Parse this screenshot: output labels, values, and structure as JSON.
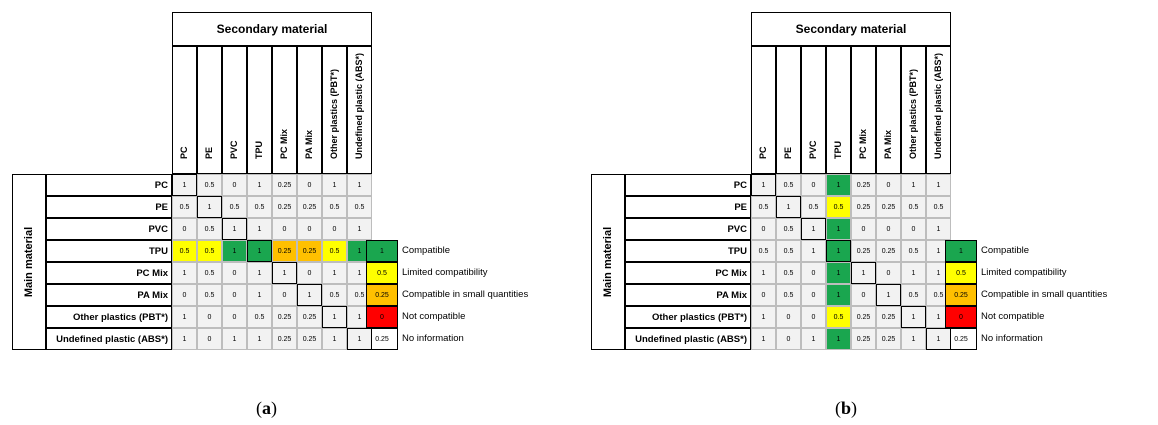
{
  "top_header": "Secondary material",
  "side_header": "Main material",
  "columns": [
    "PC",
    "PE",
    "PVC",
    "TPU",
    "PC Mix",
    "PA Mix",
    "Other plastics (PBT*)",
    "Undefined plastic (ABS*)"
  ],
  "rows": [
    "PC",
    "PE",
    "PVC",
    "TPU",
    "PC Mix",
    "PA Mix",
    "Other plastics (PBT*)",
    "Undefined plastic (ABS*)"
  ],
  "colors": {
    "green": "#1aa64f",
    "yellow": "#ffff00",
    "orange": "#ffc000",
    "red": "#ff0000",
    "white": "#ffffff",
    "header_bg": "#ffffff",
    "cell_bg": "#f2f2f2"
  },
  "legend": [
    {
      "value": "1",
      "label": "Compatible",
      "color": "green"
    },
    {
      "value": "0.5",
      "label": "Limited compatibility",
      "color": "yellow"
    },
    {
      "value": "0.25",
      "label": "Compatible in small quantities",
      "color": "orange"
    },
    {
      "value": "0",
      "label": "Not compatible",
      "color": "red"
    },
    {
      "value": "0.25",
      "label": "No information",
      "color": "white"
    }
  ],
  "panels": [
    {
      "caption_letter": "a",
      "matrix": [
        [
          "1",
          "0.5",
          "0",
          "1",
          "0.25",
          "0",
          "1",
          "1"
        ],
        [
          "0.5",
          "1",
          "0.5",
          "0.5",
          "0.25",
          "0.25",
          "0.5",
          "0.5"
        ],
        [
          "0",
          "0.5",
          "1",
          "1",
          "0",
          "0",
          "0",
          "1"
        ],
        [
          "0.5",
          "0.5",
          "1",
          "1",
          "0.25",
          "0.25",
          "0.5",
          "1"
        ],
        [
          "1",
          "0.5",
          "0",
          "1",
          "1",
          "0",
          "1",
          "1"
        ],
        [
          "0",
          "0.5",
          "0",
          "1",
          "0",
          "1",
          "0.5",
          "0.5"
        ],
        [
          "1",
          "0",
          "0",
          "0.5",
          "0.25",
          "0.25",
          "1",
          "1"
        ],
        [
          "1",
          "0",
          "1",
          "1",
          "0.25",
          "0.25",
          "1",
          "1"
        ]
      ],
      "highlight": {
        "type": "row",
        "index": 3
      }
    },
    {
      "caption_letter": "b",
      "matrix": [
        [
          "1",
          "0.5",
          "0",
          "1",
          "0.25",
          "0",
          "1",
          "1"
        ],
        [
          "0.5",
          "1",
          "0.5",
          "0.5",
          "0.25",
          "0.25",
          "0.5",
          "0.5"
        ],
        [
          "0",
          "0.5",
          "1",
          "1",
          "0",
          "0",
          "0",
          "1"
        ],
        [
          "0.5",
          "0.5",
          "1",
          "1",
          "0.25",
          "0.25",
          "0.5",
          "1"
        ],
        [
          "1",
          "0.5",
          "0",
          "1",
          "1",
          "0",
          "1",
          "1"
        ],
        [
          "0",
          "0.5",
          "0",
          "1",
          "0",
          "1",
          "0.5",
          "0.5"
        ],
        [
          "1",
          "0",
          "0",
          "0.5",
          "0.25",
          "0.25",
          "1",
          "1"
        ],
        [
          "1",
          "0",
          "1",
          "1",
          "0.25",
          "0.25",
          "1",
          "1"
        ]
      ],
      "highlight": {
        "type": "col",
        "index": 3
      }
    }
  ]
}
